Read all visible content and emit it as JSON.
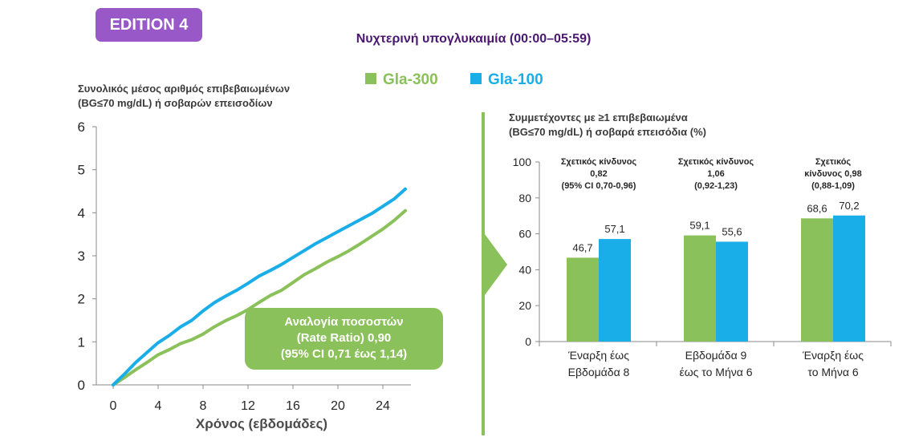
{
  "badge": "EDITION 4",
  "title": "Νυχτερινή  υπογλυκαιμία (00:00–05:59)",
  "legend": [
    {
      "label": "Gla-300",
      "color": "#8bc15a"
    },
    {
      "label": "Gla-100",
      "color": "#1aaee8"
    }
  ],
  "rate_ratio_box": {
    "line1": "Αναλογία ποσοστών",
    "line2": "(Rate Ratio) 0,90",
    "line3": "(95% CI 0,71 έως 1,14)"
  },
  "chart_data": [
    {
      "type": "line",
      "ylabel_line1": "Συνολικός μέσος αριθμός επιβεβαιωμένων",
      "ylabel_line2": "(BG≤70 mg/dL) ή σοβαρών επεισοδίων",
      "xlabel": "Χρόνος (εβδομάδες)",
      "xlim": [
        -1.5,
        26.5
      ],
      "ylim": [
        0,
        6
      ],
      "xticks": [
        "0",
        "4",
        "8",
        "12",
        "16",
        "20",
        "24"
      ],
      "yticks": [
        "0",
        "1",
        "2",
        "3",
        "4",
        "5",
        "6"
      ],
      "series": [
        {
          "name": "Gla-300",
          "color": "#8bc15a",
          "x": [
            0,
            1,
            2,
            3,
            4,
            5,
            6,
            7,
            8,
            9,
            10,
            11,
            12,
            13,
            14,
            15,
            16,
            17,
            18,
            19,
            20,
            21,
            22,
            23,
            24,
            25,
            26
          ],
          "y": [
            0,
            0.17,
            0.35,
            0.52,
            0.7,
            0.82,
            0.96,
            1.05,
            1.18,
            1.35,
            1.49,
            1.61,
            1.75,
            1.92,
            2.08,
            2.2,
            2.38,
            2.56,
            2.7,
            2.85,
            2.98,
            3.12,
            3.28,
            3.45,
            3.62,
            3.82,
            4.05
          ]
        },
        {
          "name": "Gla-100",
          "color": "#1aaee8",
          "x": [
            0,
            1,
            2,
            3,
            4,
            5,
            6,
            7,
            8,
            9,
            10,
            11,
            12,
            13,
            14,
            15,
            16,
            17,
            18,
            19,
            20,
            21,
            22,
            23,
            24,
            25,
            26
          ],
          "y": [
            0,
            0.25,
            0.52,
            0.75,
            0.98,
            1.15,
            1.35,
            1.5,
            1.72,
            1.91,
            2.06,
            2.2,
            2.36,
            2.53,
            2.66,
            2.8,
            2.96,
            3.12,
            3.28,
            3.42,
            3.56,
            3.7,
            3.84,
            3.98,
            4.15,
            4.32,
            4.55
          ]
        }
      ]
    },
    {
      "type": "bar",
      "ylabel_line1": "Συμμετέχοντες με ≥1 επιβεβαιωμένα",
      "ylabel_line2": "(BG≤70 mg/dL) ή σοβαρά επεισόδια (%)",
      "ylim": [
        0,
        100
      ],
      "yticks": [
        "0",
        "20",
        "40",
        "60",
        "80",
        "100"
      ],
      "categories": [
        {
          "line1": "Έναρξη έως",
          "line2": "Εβδομάδα 8"
        },
        {
          "line1": "Εβδομάδα 9",
          "line2": "έως το Μήνα 6"
        },
        {
          "line1": "Έναρξη έως",
          "line2": "το Μήνα 6"
        }
      ],
      "series": [
        {
          "name": "Gla-300",
          "color": "#8bc15a",
          "values": [
            46.7,
            59.1,
            68.6
          ],
          "labels": [
            "46,7",
            "59,1",
            "68,6"
          ]
        },
        {
          "name": "Gla-100",
          "color": "#1aaee8",
          "values": [
            57.1,
            55.6,
            70.2
          ],
          "labels": [
            "57,1",
            "55,6",
            "70,2"
          ]
        }
      ],
      "annotations": [
        [
          "Σχετικός κίνδυνος",
          "0,82",
          "(95%  CI 0,70-0,96)"
        ],
        [
          "Σχετικός κίνδυνος",
          "1,06",
          "(0,92-1,23)"
        ],
        [
          "Σχετικός",
          "κίνδυνος 0,98",
          "(0,88-1,09)"
        ]
      ]
    }
  ]
}
